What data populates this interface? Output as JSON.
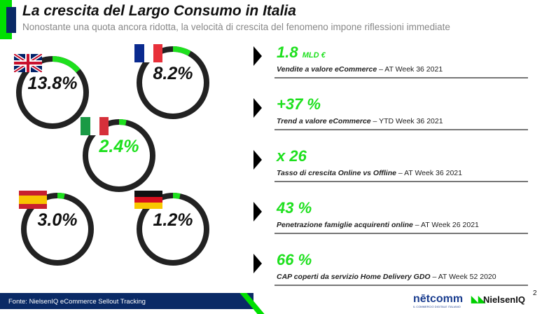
{
  "header": {
    "title": "La crescita del Largo Consumo in Italia",
    "subtitle": "Nonostante una quota ancora ridotta, la velocità di crescita del fenomeno impone riflessioni immediate"
  },
  "colors": {
    "accent": "#1ee01e",
    "navy": "#0a2a66",
    "ring": "#222222"
  },
  "countries": [
    {
      "name": "UK",
      "label": "13.8%",
      "value": 13.8,
      "flag": "uk-flag"
    },
    {
      "name": "France",
      "label": "8.2%",
      "value": 8.2,
      "flag": "france-flag"
    },
    {
      "name": "Italy",
      "label": "2.4%",
      "value": 2.4,
      "flag": "italy-flag"
    },
    {
      "name": "Spain",
      "label": "3.0%",
      "value": 3.0,
      "flag": "spain-flag"
    },
    {
      "name": "Germany",
      "label": "1.2%",
      "value": 1.2,
      "flag": "germany-flag"
    }
  ],
  "kpis": [
    {
      "value": "1.8",
      "unit": "MLD €",
      "label": "Vendite a valore eCommerce",
      "period": " – AT Week 36 2021"
    },
    {
      "value": "+37 %",
      "unit": "",
      "label": "Trend a valore eCommerce",
      "period": " – YTD Week 36 2021"
    },
    {
      "value": "x 26",
      "unit": "",
      "label": "Tasso di crescita Online vs Offline",
      "period": " – AT Week 36 2021"
    },
    {
      "value": "43 %",
      "unit": "",
      "label": "Penetrazione famiglie acquirenti online",
      "period": " – AT Week 26 2021"
    },
    {
      "value": "66 %",
      "unit": "",
      "label": "CAP coperti da servizio Home Delivery GDO",
      "period": "  – AT Week 52 2020"
    }
  ],
  "footer": {
    "source": "Fonte: NielsenIQ eCommerce Sellout Tracking",
    "netcomm": "nētcomm",
    "netcomm_tagline": "IL COMMERCIO DIGITALE ITALIANO",
    "nielsen": "NielsenIQ",
    "page": "2"
  }
}
